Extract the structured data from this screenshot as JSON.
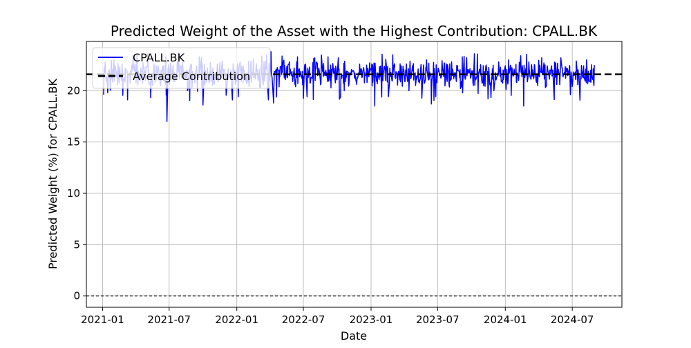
{
  "chart_data": {
    "type": "line",
    "title": "Predicted Weight of the Asset with the Highest Contribution: CPALL.BK",
    "xlabel": "Date",
    "ylabel": "Predicted Weight (%) for CPALL.BK",
    "x_ticks": [
      "2021-01",
      "2021-07",
      "2022-01",
      "2022-07",
      "2023-01",
      "2023-07",
      "2024-01",
      "2024-07"
    ],
    "y_ticks": [
      0,
      5,
      10,
      15,
      20
    ],
    "xlim": [
      "2020-11-18",
      "2024-11-13"
    ],
    "ylim": [
      -1.1,
      24.8
    ],
    "grid": true,
    "legend": {
      "placement": "upper-left",
      "entries": [
        "CPALL.BK",
        "Average Contribution"
      ]
    },
    "series": [
      {
        "name": "CPALL.BK",
        "color": "#0000ff",
        "date_start": "2021-01-04",
        "date_end": "2024-08-30",
        "baseline": 21.6,
        "x": [
          "2021-01-04",
          "2021-01-08",
          "2021-01-15",
          "2021-02-01",
          "2021-03-10",
          "2021-04-05",
          "2021-05-12",
          "2021-06-22",
          "2021-06-25",
          "2021-07-05",
          "2021-08-20",
          "2021-10-01",
          "2021-11-15",
          "2022-01-05",
          "2022-02-15",
          "2022-03-20",
          "2022-03-28",
          "2022-04-03",
          "2022-04-10",
          "2022-05-20",
          "2022-06-15",
          "2022-07-10",
          "2022-08-05",
          "2022-10-20",
          "2022-12-20",
          "2023-01-11",
          "2023-03-01",
          "2023-04-15",
          "2023-06-01",
          "2023-06-14",
          "2023-07-20",
          "2023-09-01",
          "2023-10-09",
          "2023-12-01",
          "2024-01-10",
          "2024-02-20",
          "2024-03-05",
          "2024-04-20",
          "2024-06-01",
          "2024-06-30",
          "2024-08-10",
          "2024-08-30"
        ],
        "y": [
          19.6,
          22.8,
          19.8,
          23.0,
          19.1,
          23.6,
          19.3,
          23.3,
          17.0,
          22.7,
          20.0,
          18.6,
          22.2,
          19.4,
          23.1,
          22.9,
          19.1,
          23.8,
          18.8,
          22.5,
          23.3,
          19.4,
          22.8,
          20.0,
          22.5,
          18.5,
          23.5,
          20.0,
          23.0,
          18.7,
          22.7,
          20.2,
          23.6,
          20.0,
          23.0,
          18.5,
          22.8,
          20.3,
          23.2,
          20.4,
          23.0,
          22.5
        ]
      },
      {
        "name": "Average Contribution",
        "color": "#000000",
        "value": 21.6
      }
    ],
    "reference_lines": [
      {
        "value": 0,
        "color": "#000000",
        "style": "dashed"
      }
    ]
  }
}
